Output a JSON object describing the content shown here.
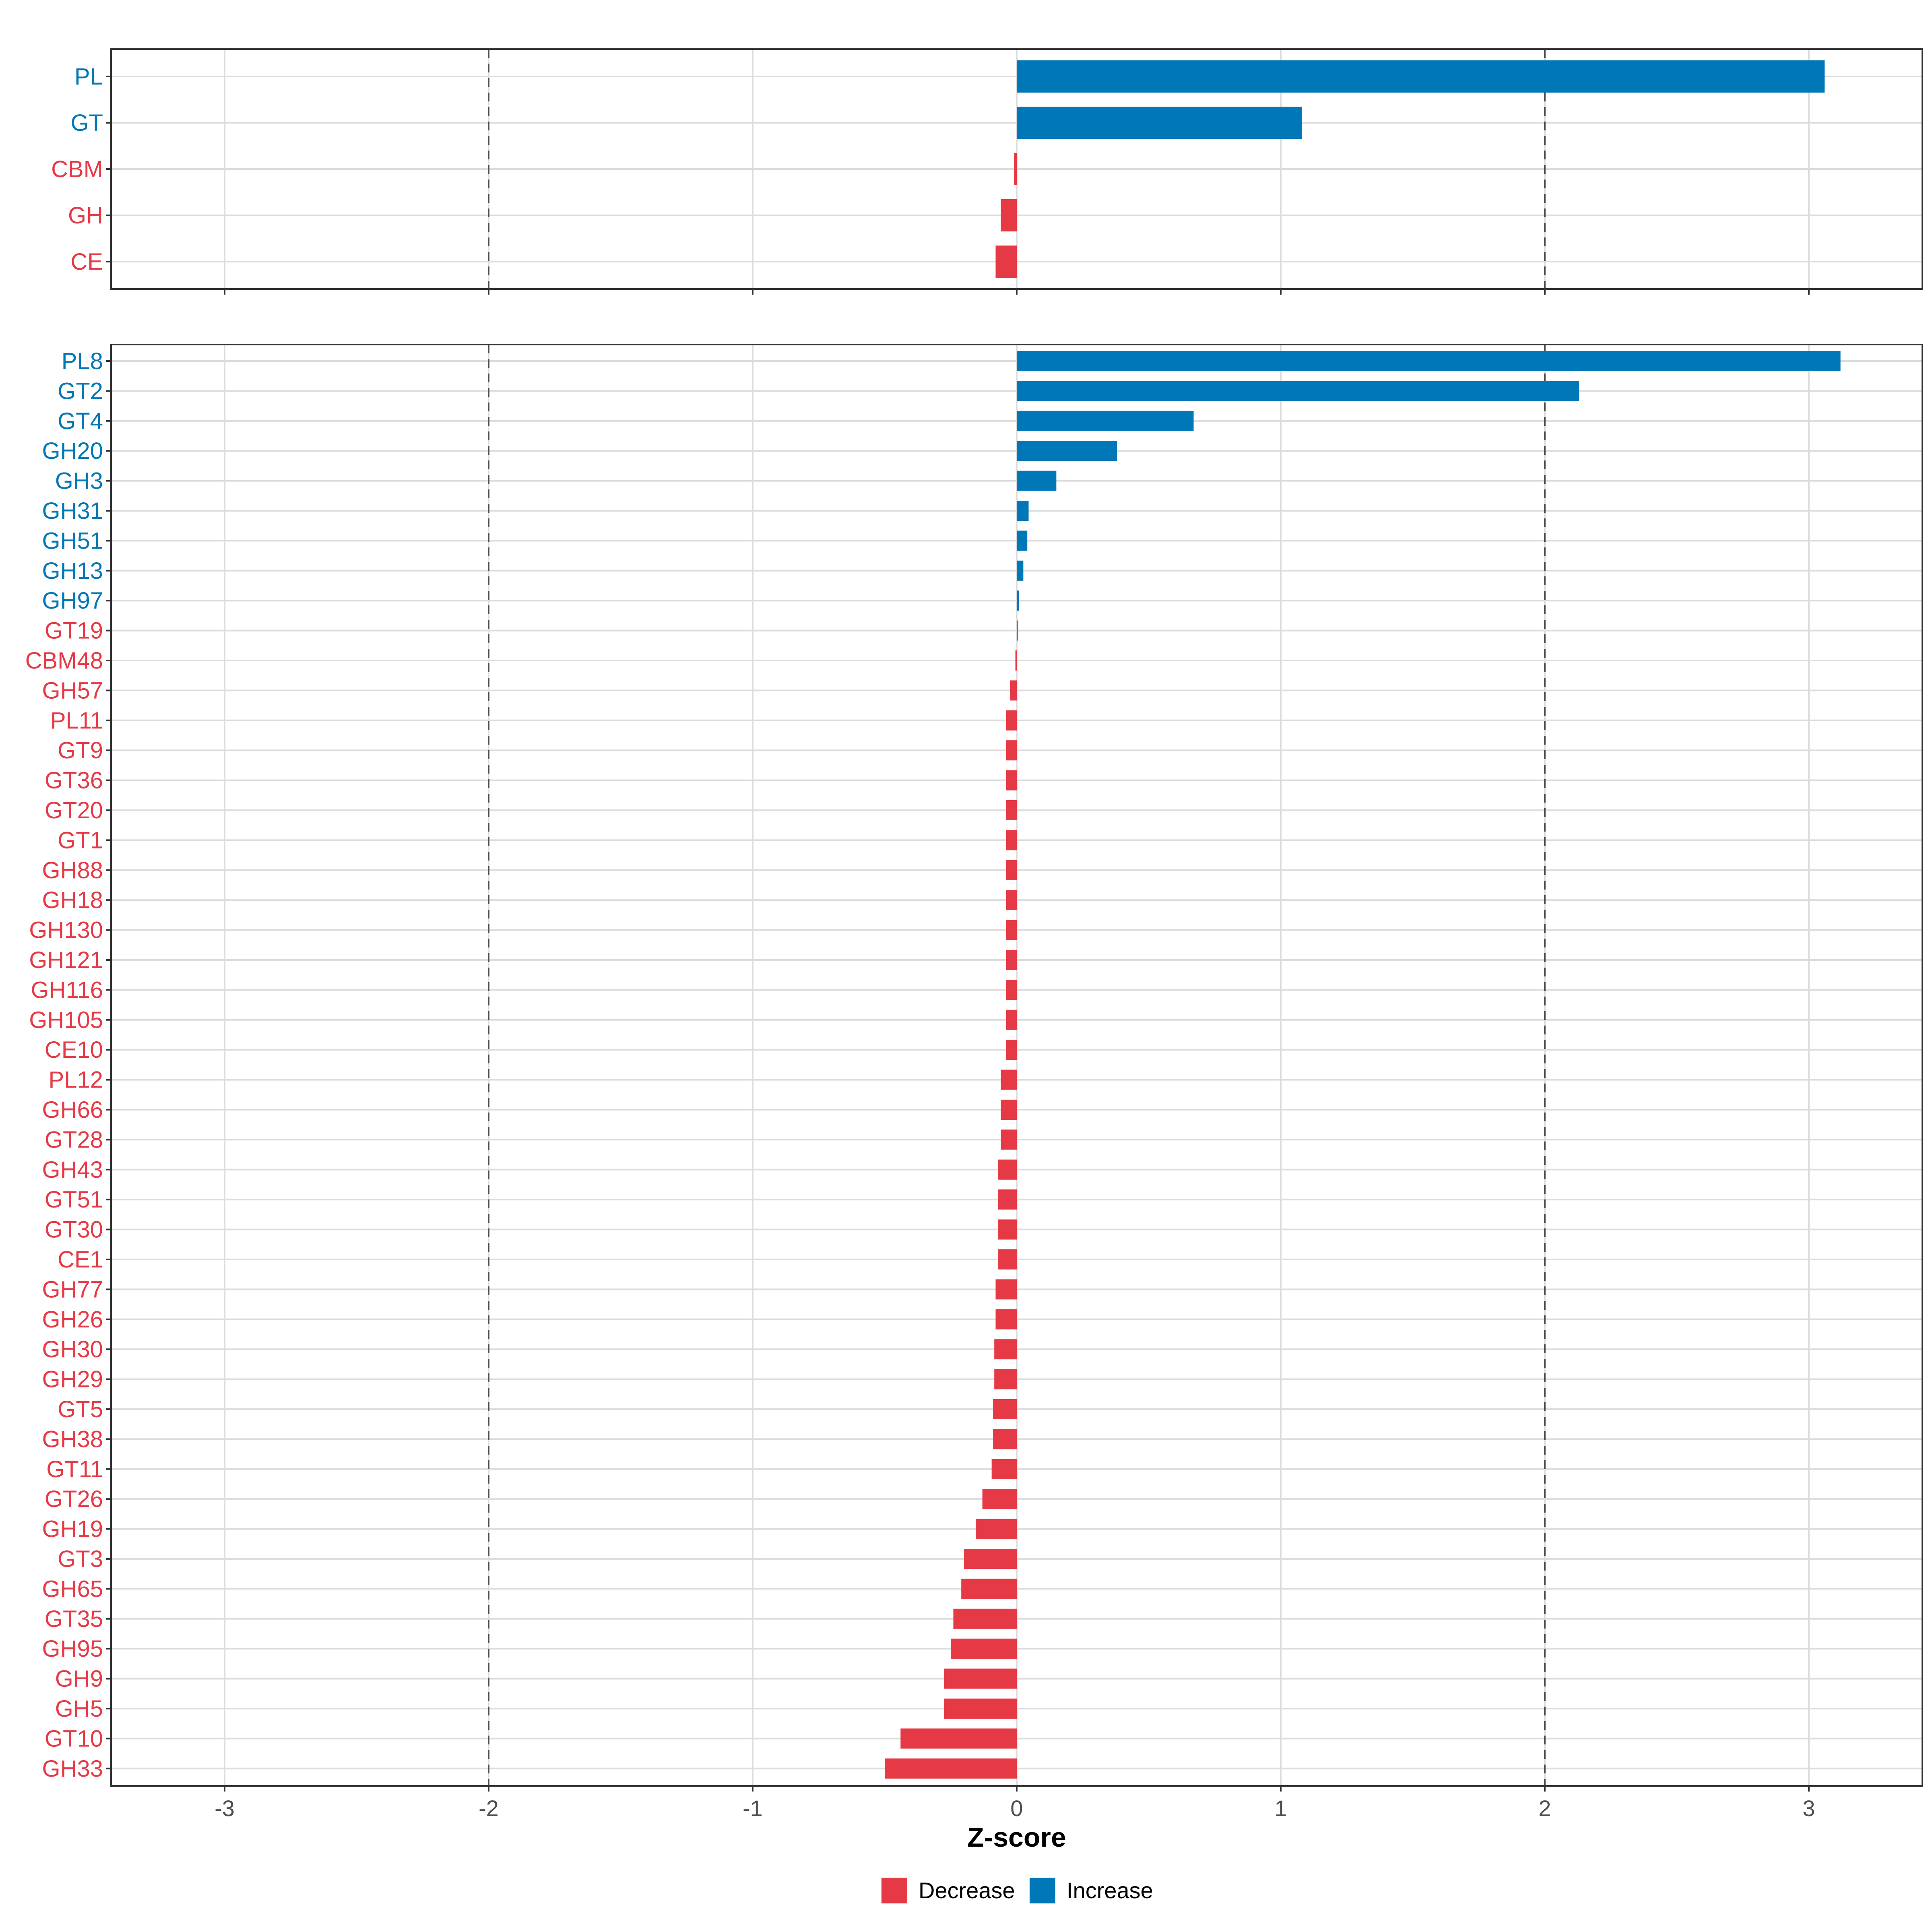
{
  "chart_data": [
    {
      "type": "bar",
      "orientation": "horizontal",
      "panel": "top",
      "categories": [
        "PL",
        "GT",
        "CBM",
        "GH",
        "CE"
      ],
      "values": [
        3.06,
        1.08,
        -0.01,
        -0.06,
        -0.08
      ],
      "xlim": [
        -3.43,
        3.43
      ],
      "reference_lines": [
        -2,
        2
      ]
    },
    {
      "type": "bar",
      "orientation": "horizontal",
      "panel": "bottom",
      "categories": [
        "PL8",
        "GT2",
        "GT4",
        "GH20",
        "GH3",
        "GH31",
        "GH51",
        "GH13",
        "GH97",
        "GT19",
        "CBM48",
        "GH57",
        "PL11",
        "GT9",
        "GT36",
        "GT20",
        "GT1",
        "GH88",
        "GH18",
        "GH130",
        "GH121",
        "GH116",
        "GH105",
        "CE10",
        "PL12",
        "GH66",
        "GT28",
        "GH43",
        "GT51",
        "GT30",
        "CE1",
        "GH77",
        "GH26",
        "GH30",
        "GH29",
        "GT5",
        "GH38",
        "GT11",
        "GT26",
        "GH19",
        "GT3",
        "GH65",
        "GT35",
        "GH95",
        "GH9",
        "GH5",
        "GT10",
        "GH33"
      ],
      "values": [
        3.12,
        2.13,
        0.67,
        0.38,
        0.15,
        0.045,
        0.04,
        0.025,
        0.008,
        0.0,
        -0.005,
        -0.025,
        -0.04,
        -0.04,
        -0.04,
        -0.04,
        -0.04,
        -0.04,
        -0.04,
        -0.04,
        -0.04,
        -0.04,
        -0.04,
        -0.04,
        -0.06,
        -0.06,
        -0.06,
        -0.07,
        -0.07,
        -0.07,
        -0.07,
        -0.08,
        -0.08,
        -0.085,
        -0.085,
        -0.09,
        -0.09,
        -0.095,
        -0.13,
        -0.155,
        -0.2,
        -0.21,
        -0.24,
        -0.25,
        -0.275,
        -0.275,
        -0.44,
        -0.5
      ],
      "xlim": [
        -3.43,
        3.43
      ],
      "reference_lines": [
        -2,
        2
      ],
      "xlabel": "Z-score",
      "xticks": [
        "-3",
        "-2",
        "-1",
        "0",
        "1",
        "2",
        "3"
      ]
    }
  ],
  "legend": {
    "placement": "bottom",
    "items": [
      {
        "label": "Decrease",
        "color": "#e63946"
      },
      {
        "label": "Increase",
        "color": "#0077b6"
      }
    ]
  },
  "colors": {
    "increase": "#0077b6",
    "decrease": "#e63946",
    "grid": "#dcdcdc",
    "reference": "#4d4d4d"
  }
}
